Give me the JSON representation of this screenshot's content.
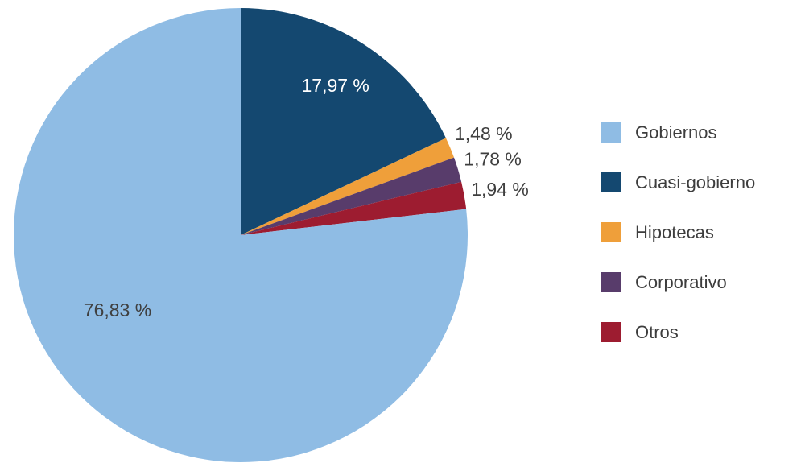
{
  "chart_data": {
    "type": "pie",
    "title": "",
    "unit": "%",
    "decimal_separator": ",",
    "legend_position": "right",
    "total": 100,
    "slices": [
      {
        "label": "Gobiernos",
        "value": 76.83,
        "display": "76,83 %",
        "color": "#8fbce4",
        "label_color": "#3f3f3f",
        "label_position": "inside"
      },
      {
        "label": "Cuasi-gobierno",
        "value": 17.97,
        "display": "17,97 %",
        "color": "#144870",
        "label_color": "#ffffff",
        "label_position": "inside"
      },
      {
        "label": "Hipotecas",
        "value": 1.48,
        "display": "1,48 %",
        "color": "#ef9f3a",
        "label_color": "#3f3f3f",
        "label_position": "outside"
      },
      {
        "label": "Corporativo",
        "value": 1.78,
        "display": "1,78 %",
        "color": "#583c6b",
        "label_color": "#3f3f3f",
        "label_position": "outside"
      },
      {
        "label": "Otros",
        "value": 1.94,
        "display": "1,94 %",
        "color": "#9d1c30",
        "label_color": "#3f3f3f",
        "label_position": "outside"
      }
    ]
  }
}
